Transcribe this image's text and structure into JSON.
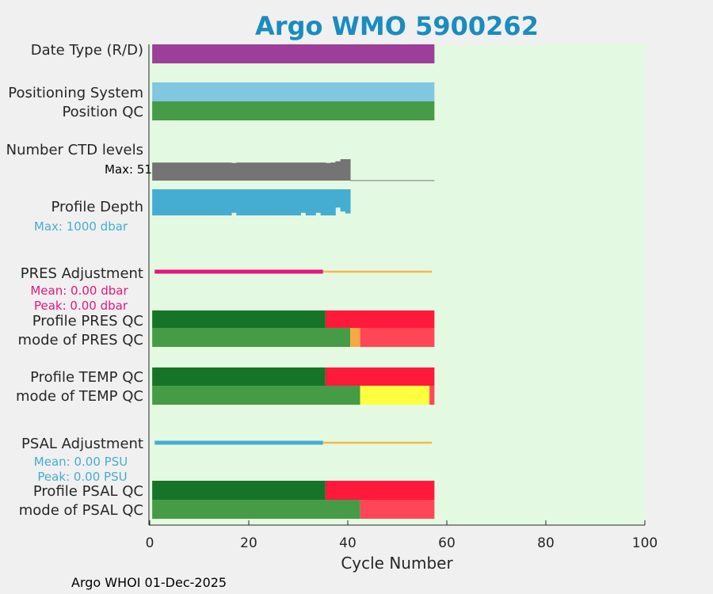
{
  "chart_data": {
    "type": "bar",
    "title": "Argo WMO 5900262",
    "xlabel": "Cycle Number",
    "xlim": [
      0,
      100
    ],
    "xticks": [
      "0",
      "20",
      "40",
      "60",
      "80",
      "100"
    ],
    "footer": "Argo WHOI 01-Dec-2025",
    "colors": {
      "title": "#1a8cbf",
      "plot_bg": "#e4f9e1",
      "date_type": "#9b3f99",
      "positioning": "#82c7e1",
      "qc_good": "#469b46",
      "qc_profile_good": "#167428",
      "qc_bad": "#ff1a3c",
      "qc_mode_bad": "#ff4657",
      "qc_probably_bad": "#f5a843",
      "qc_questionable": "#ffff40",
      "ctd": "#747474",
      "depth": "#45add1",
      "pres_adj": "#e6157e",
      "psal_adj": "#45add1",
      "adj_late": "#f5b94a"
    },
    "rows": {
      "date_type": "Date Type (R/D)",
      "positioning": "Positioning System",
      "position_qc": "Position QC",
      "ctd_levels": "Number CTD levels",
      "profile_depth": "Profile Depth",
      "pres_adj": "PRES Adjustment",
      "profile_pres_qc": "Profile PRES QC",
      "mode_pres_qc": "mode of PRES QC",
      "profile_temp_qc": "Profile TEMP QC",
      "mode_temp_qc": "mode of TEMP QC",
      "psal_adj": "PSAL Adjustment",
      "profile_psal_qc": "Profile PSAL QC",
      "mode_psal_qc": "mode of PSAL QC"
    },
    "annotations": {
      "ctd_max": "Max: 51",
      "depth_max": "Max: 1000 dbar",
      "pres_mean": "Mean: 0.00 dbar",
      "pres_peak": "Peak: 0.00 dbar",
      "psal_mean": "Mean: 0.00 PSU",
      "psal_peak": "Peak: 0.00 PSU"
    },
    "series": {
      "date_type": [
        {
          "from": 0.5,
          "to": 57.5,
          "color": "date_type"
        }
      ],
      "positioning": [
        {
          "from": 0.5,
          "to": 57.5,
          "color": "positioning"
        }
      ],
      "position_qc": [
        {
          "from": 0.5,
          "to": 57.5,
          "color": "qc_good"
        }
      ],
      "profile_pres_qc": [
        {
          "from": 0.5,
          "to": 35.5,
          "color": "qc_profile_good"
        },
        {
          "from": 35.5,
          "to": 57.5,
          "color": "qc_bad"
        }
      ],
      "mode_pres_qc": [
        {
          "from": 0.5,
          "to": 40.5,
          "color": "qc_good"
        },
        {
          "from": 40.5,
          "to": 42.5,
          "color": "qc_probably_bad"
        },
        {
          "from": 42.5,
          "to": 57.5,
          "color": "qc_mode_bad"
        }
      ],
      "profile_temp_qc": [
        {
          "from": 0.5,
          "to": 35.5,
          "color": "qc_profile_good"
        },
        {
          "from": 35.5,
          "to": 57.5,
          "color": "qc_bad"
        }
      ],
      "mode_temp_qc": [
        {
          "from": 0.5,
          "to": 42.5,
          "color": "qc_good"
        },
        {
          "from": 42.5,
          "to": 56.5,
          "color": "qc_questionable"
        },
        {
          "from": 56.5,
          "to": 57.5,
          "color": "qc_mode_bad"
        }
      ],
      "profile_psal_qc": [
        {
          "from": 0.5,
          "to": 35.5,
          "color": "qc_profile_good"
        },
        {
          "from": 35.5,
          "to": 57.5,
          "color": "qc_bad"
        }
      ],
      "mode_psal_qc": [
        {
          "from": 0.5,
          "to": 42.5,
          "color": "qc_good"
        },
        {
          "from": 42.5,
          "to": 57.5,
          "color": "qc_mode_bad"
        }
      ],
      "pres_adj": [
        {
          "from": 1,
          "to": 35,
          "color": "pres_adj"
        },
        {
          "from": 35,
          "to": 57,
          "color": "adj_late"
        }
      ],
      "psal_adj": [
        {
          "from": 1,
          "to": 35,
          "color": "psal_adj"
        },
        {
          "from": 35,
          "to": 57,
          "color": "adj_late"
        }
      ]
    },
    "ctd_levels": {
      "max": 51,
      "cycles": [
        1,
        2,
        3,
        4,
        5,
        6,
        7,
        8,
        9,
        10,
        11,
        12,
        13,
        14,
        15,
        16,
        17,
        18,
        19,
        20,
        21,
        22,
        23,
        24,
        25,
        26,
        27,
        28,
        29,
        30,
        31,
        32,
        33,
        34,
        35,
        36,
        37,
        38,
        39,
        40
      ],
      "values": [
        43,
        43,
        43,
        43,
        43,
        43,
        43,
        43,
        43,
        43,
        43,
        43,
        43,
        43,
        43,
        43,
        42,
        43,
        43,
        43,
        43,
        43,
        43,
        43,
        43,
        43,
        43,
        43,
        43,
        43,
        43,
        43,
        43,
        43,
        43,
        42,
        43,
        46,
        51,
        51
      ],
      "line_to": 57.5
    },
    "profile_depth": {
      "max": 1000,
      "cycles": [
        1,
        2,
        3,
        4,
        5,
        6,
        7,
        8,
        9,
        10,
        11,
        12,
        13,
        14,
        15,
        16,
        17,
        18,
        19,
        20,
        21,
        22,
        23,
        24,
        25,
        26,
        27,
        28,
        29,
        30,
        31,
        32,
        33,
        34,
        35,
        36,
        37,
        38,
        39,
        40
      ],
      "values": [
        1000,
        1000,
        1000,
        1000,
        1000,
        1000,
        1000,
        1000,
        1000,
        1000,
        1000,
        1000,
        1000,
        1000,
        1000,
        1000,
        900,
        1000,
        1000,
        1000,
        1000,
        1000,
        1000,
        1000,
        1000,
        1000,
        1000,
        1000,
        1000,
        1000,
        900,
        1000,
        1000,
        900,
        1000,
        1000,
        1000,
        700,
        850,
        925
      ]
    }
  }
}
